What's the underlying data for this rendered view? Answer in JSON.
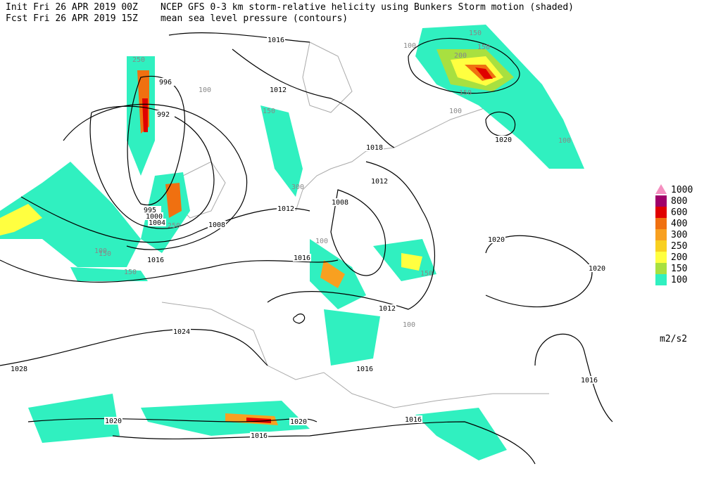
{
  "header": {
    "init": "Init  Fri 26 APR 2019 00Z",
    "forecast": "Fcst Fri 26 APR 2019 15Z",
    "title": "NCEP GFS 0-3 km storm-relative helicity using Bunkers Storm motion (shaded)",
    "subtitle": "mean sea level pressure (contours)"
  },
  "legend": {
    "levels": [
      1000,
      800,
      600,
      400,
      300,
      250,
      200,
      150,
      100
    ],
    "colors": [
      "#f58fc0",
      "#a0006a",
      "#e00000",
      "#f07010",
      "#f8a020",
      "#f8d020",
      "#ffff40",
      "#a8e040",
      "#30f0c0"
    ],
    "unit": "m2/s2"
  },
  "isobar_labels": [
    1016,
    1012,
    996,
    992,
    1018,
    1012,
    1008,
    1012,
    1008,
    995,
    1000,
    1004,
    1016,
    1016,
    1020,
    1020,
    1012,
    1024,
    1028,
    1016,
    1016,
    1020,
    1020,
    1016,
    1016,
    1020
  ],
  "helicity_labels": [
    150,
    100,
    200,
    150,
    150,
    100,
    250,
    100,
    150,
    100,
    300,
    150,
    100,
    150,
    100,
    250,
    150,
    100
  ]
}
